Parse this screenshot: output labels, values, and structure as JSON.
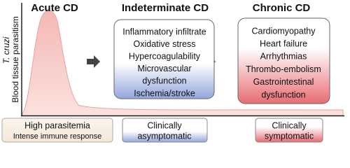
{
  "y_axis": {
    "organism": "T. cruzi",
    "label": "Blood tissue parasitism"
  },
  "stages": [
    {
      "title": "Acute CD",
      "status": [
        "High parasitemia",
        "Intense immune response"
      ]
    },
    {
      "title": "Indeterminate CD",
      "features": [
        "Inflammatory infiltrate",
        "Oxidative stress",
        "Hypercoagulability",
        "Microvascular",
        "dysfunction",
        "Ischemia/stroke"
      ],
      "status": [
        "Clinically",
        "asymptomatic"
      ]
    },
    {
      "title": "Chronic CD",
      "features": [
        "Cardiomyopathy",
        "Heart failure",
        "Arrhythmias",
        "Thrombo-embolism",
        "Gastrointestinal",
        "dysfunction"
      ],
      "status": [
        "Clinically",
        "symptomatic"
      ]
    }
  ]
}
